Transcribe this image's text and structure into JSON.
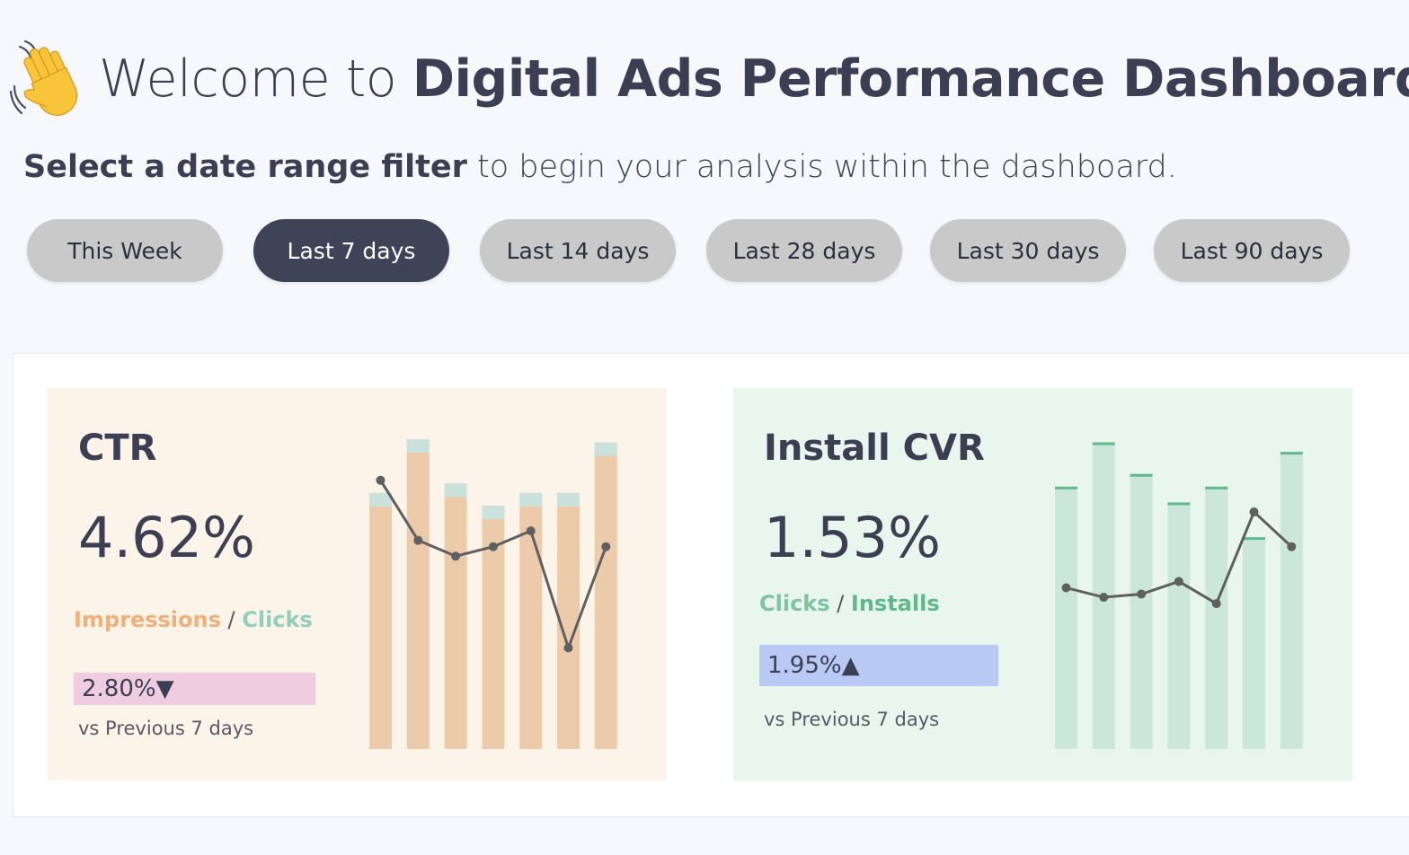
{
  "header": {
    "emoji": "waving-hand-icon",
    "title_prefix": "Welcome to ",
    "title_main": "Digital Ads Performance Dashboard!"
  },
  "subtitle": {
    "bold": "Select a date range filter",
    "rest": " to begin your analysis within the dashboard."
  },
  "filters": [
    {
      "label": "This Week",
      "active": false
    },
    {
      "label": "Last 7 days",
      "active": true
    },
    {
      "label": "Last 14 days",
      "active": false
    },
    {
      "label": "Last 28 days",
      "active": false
    },
    {
      "label": "Last 30 days",
      "active": false
    },
    {
      "label": "Last 90 days",
      "active": false
    }
  ],
  "cards": {
    "ctr": {
      "title": "CTR",
      "value": "4.62%",
      "numerator": "Impressions",
      "separator": " / ",
      "denominator": "Clicks",
      "delta": "2.80%▼",
      "comparison": "vs Previous 7 days",
      "colors": {
        "bar": "#eccbab",
        "bar_cap": "#c9e3dc",
        "line": "#5f5f5f",
        "delta_bg": "#f0cce0",
        "numerator": "#efb07a",
        "denominator": "#8fcfbc",
        "background": "#fcf3e9"
      }
    },
    "cvr": {
      "title": "Install CVR",
      "value": "1.53%",
      "numerator": "Clicks",
      "separator": " / ",
      "denominator": "Installs",
      "delta": "1.95%▲",
      "comparison": "vs Previous 7 days",
      "colors": {
        "bar": "#cbe7dc",
        "bar_cap": "#5fb98c",
        "line": "#5f5f5f",
        "delta_bg": "#b8c9f4",
        "numerator": "#7fc3a3",
        "denominator": "#5fb98c",
        "background": "#e8f6ee"
      }
    }
  },
  "chart_data": [
    {
      "type": "bar",
      "name": "ctr-sparkline",
      "series": [
        {
          "values": [
            0.81,
            0.98,
            0.84,
            0.77,
            0.81,
            0.81,
            0.97
          ]
        },
        {
          "values": [
            0.85,
            0.66,
            0.61,
            0.64,
            0.69,
            0.32,
            0.64
          ],
          "kind": "line"
        }
      ],
      "ylim": [
        0,
        1
      ]
    },
    {
      "type": "bar",
      "name": "cvr-sparkline",
      "series": [
        {
          "values": [
            0.83,
            0.97,
            0.87,
            0.78,
            0.83,
            0.67,
            0.94
          ]
        },
        {
          "values": [
            0.51,
            0.48,
            0.49,
            0.53,
            0.46,
            0.75,
            0.64
          ],
          "kind": "line"
        }
      ],
      "ylim": [
        0,
        1
      ]
    }
  ]
}
